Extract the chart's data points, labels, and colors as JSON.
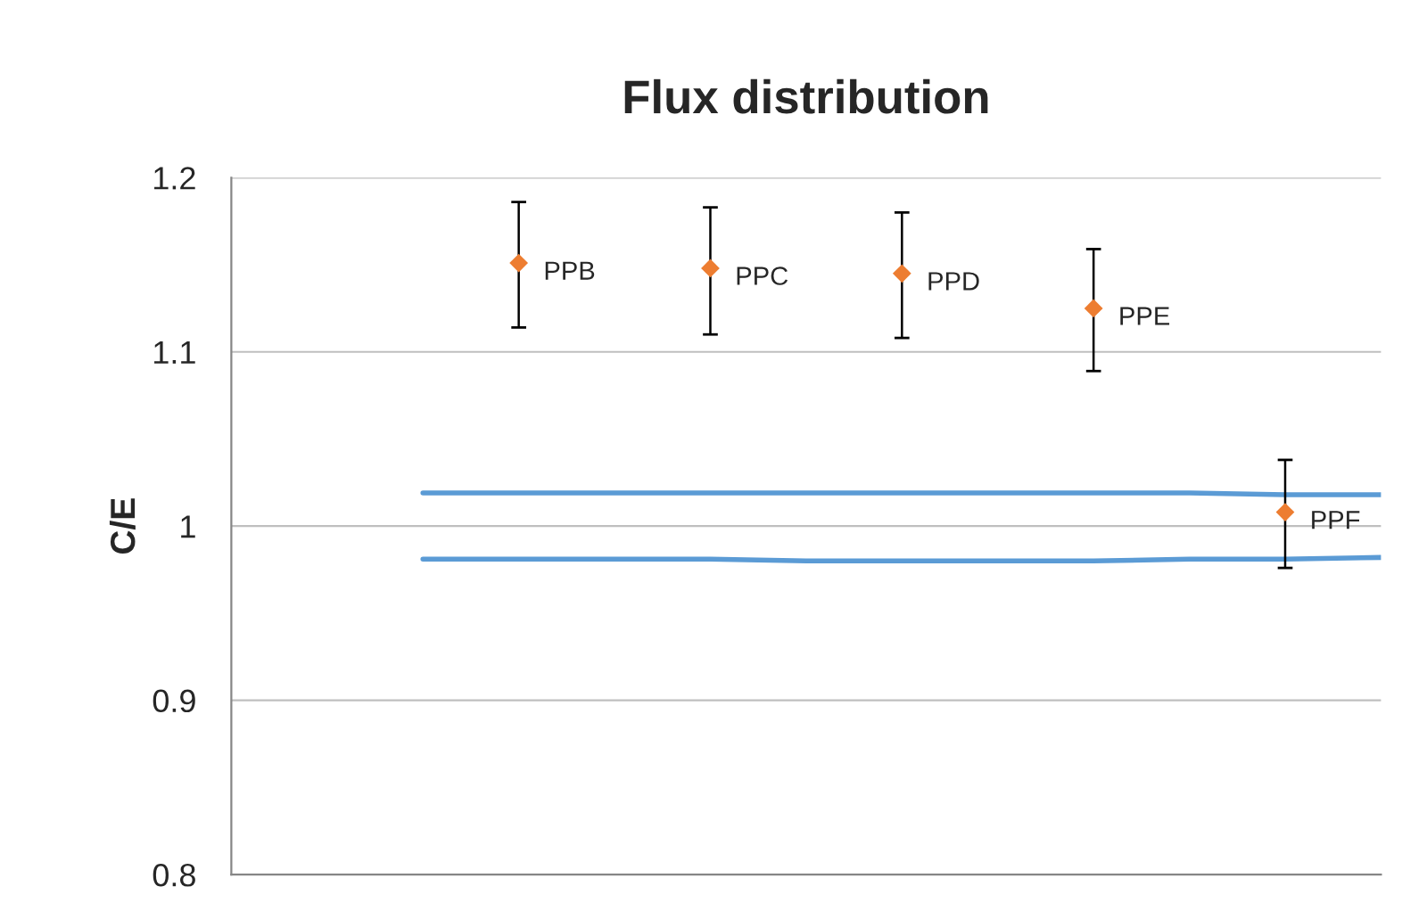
{
  "chart_data": {
    "type": "scatter",
    "title": "Flux distribution",
    "ylabel": "C/E",
    "categories": [
      null,
      null,
      null,
      null,
      null,
      null,
      null,
      null,
      null,
      null,
      null,
      null,
      null
    ],
    "ylim": [
      0.8,
      1.2
    ],
    "yticks": [
      0.8,
      0.9,
      1,
      1.1,
      1.2
    ],
    "grid": "y",
    "series": [
      {
        "name": "PPB",
        "color": "#ed7d31",
        "marker": "diamond",
        "values": [
          null,
          null,
          null,
          1.151,
          null,
          null,
          null,
          null,
          null,
          null,
          null,
          null,
          null
        ],
        "errors": [
          null,
          null,
          null,
          [
            1.114,
            1.186
          ],
          null,
          null,
          null,
          null,
          null,
          null,
          null,
          null,
          null
        ]
      },
      {
        "name": "PPC",
        "color": "#ed7d31",
        "marker": "diamond",
        "values": [
          null,
          null,
          null,
          null,
          null,
          1.148,
          null,
          null,
          null,
          null,
          null,
          null,
          null
        ],
        "errors": [
          null,
          null,
          null,
          null,
          null,
          [
            1.11,
            1.183
          ],
          null,
          null,
          null,
          null,
          null,
          null,
          null
        ]
      },
      {
        "name": "PPD",
        "color": "#ed7d31",
        "marker": "diamond",
        "values": [
          null,
          null,
          null,
          null,
          null,
          null,
          null,
          1.145,
          null,
          null,
          null,
          null,
          null
        ],
        "errors": [
          null,
          null,
          null,
          null,
          null,
          null,
          null,
          [
            1.108,
            1.18
          ],
          null,
          null,
          null,
          null,
          null
        ]
      },
      {
        "name": "PPE",
        "color": "#ed7d31",
        "marker": "diamond",
        "values": [
          null,
          null,
          null,
          null,
          null,
          null,
          null,
          null,
          null,
          1.125,
          null,
          null,
          null
        ],
        "errors": [
          null,
          null,
          null,
          null,
          null,
          null,
          null,
          null,
          null,
          [
            1.089,
            1.159
          ],
          null,
          null,
          null
        ]
      },
      {
        "name": "PPF",
        "color": "#ed7d31",
        "marker": "diamond",
        "values": [
          null,
          null,
          null,
          null,
          null,
          null,
          null,
          null,
          null,
          null,
          null,
          1.008,
          null
        ],
        "errors": [
          null,
          null,
          null,
          null,
          null,
          null,
          null,
          null,
          null,
          null,
          null,
          [
            0.976,
            1.038
          ],
          null
        ]
      },
      {
        "type": "line",
        "color": "#5b9bd5",
        "values": [
          null,
          null,
          1.019,
          1.019,
          1.019,
          1.019,
          1.019,
          1.019,
          1.019,
          1.019,
          1.019,
          1.018,
          1.018
        ]
      },
      {
        "type": "line",
        "color": "#5b9bd5",
        "values": [
          null,
          null,
          0.981,
          0.981,
          0.981,
          0.981,
          0.98,
          0.98,
          0.98,
          0.98,
          0.981,
          0.981,
          0.982
        ]
      }
    ]
  }
}
